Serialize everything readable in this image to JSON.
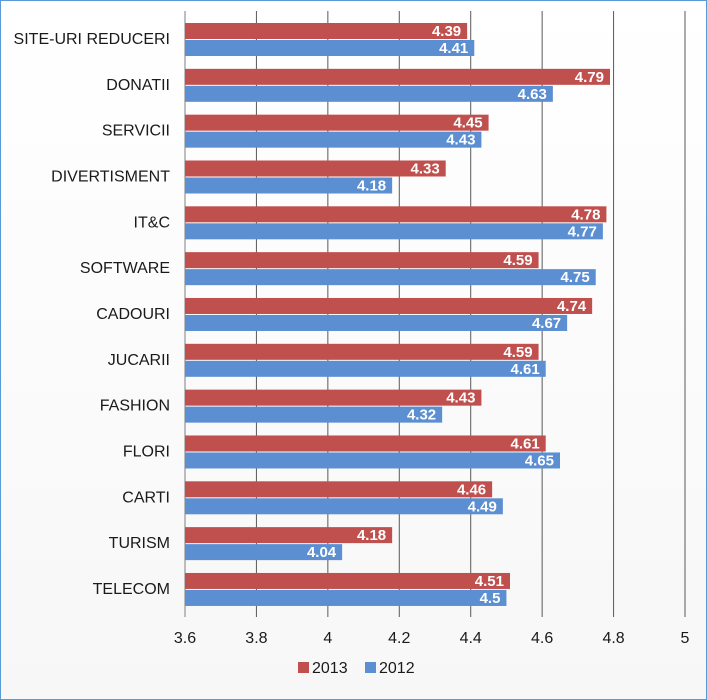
{
  "chart_data": {
    "type": "bar",
    "orientation": "horizontal",
    "categories": [
      "SITE-URI REDUCERI",
      "DONATII",
      "SERVICII",
      "DIVERTISMENT",
      "IT&C",
      "SOFTWARE",
      "CADOURI",
      "JUCARII",
      "FASHION",
      "FLORI",
      "CARTI",
      "TURISM",
      "TELECOM"
    ],
    "series": [
      {
        "name": "2013",
        "color": "#c0504d",
        "values": [
          4.39,
          4.79,
          4.45,
          4.33,
          4.78,
          4.59,
          4.74,
          4.59,
          4.43,
          4.61,
          4.46,
          4.18,
          4.51
        ]
      },
      {
        "name": "2012",
        "color": "#5b8fd2",
        "values": [
          4.41,
          4.63,
          4.43,
          4.18,
          4.77,
          4.75,
          4.67,
          4.61,
          4.32,
          4.65,
          4.49,
          4.04,
          4.5
        ]
      }
    ],
    "xlim": [
      3.6,
      5
    ],
    "xticks": [
      "3.6",
      "3.8",
      "4",
      "4.2",
      "4.4",
      "4.6",
      "4.8",
      "5"
    ],
    "grid": true,
    "legend": "bottom",
    "title": "",
    "xlabel": "",
    "ylabel": ""
  }
}
